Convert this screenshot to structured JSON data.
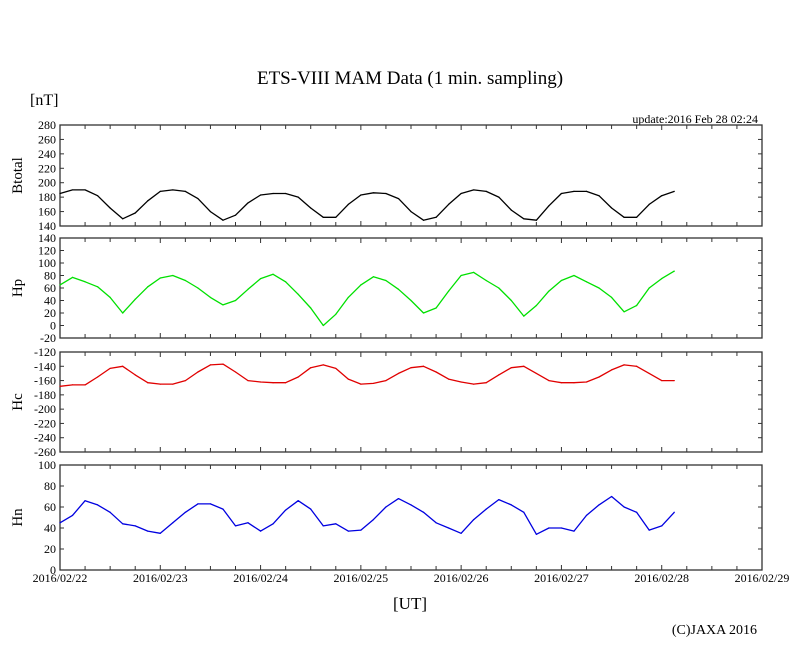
{
  "chart_data": {
    "type": "line",
    "title": "ETS-VIII MAM Data (1 min. sampling)",
    "unit_label": "[nT]",
    "update_text": "update:2016 Feb 28 02:24",
    "xlabel": "[UT]",
    "copyright": "(C)JAXA 2016",
    "x_tick_labels": [
      "2016/02/22",
      "2016/02/23",
      "2016/02/24",
      "2016/02/25",
      "2016/02/26",
      "2016/02/27",
      "2016/02/28",
      "2016/02/29"
    ],
    "x_range_days": [
      0,
      7
    ],
    "sample_interval_hours": 3,
    "grid": false,
    "panels": [
      {
        "name": "Btotal",
        "color": "#000000",
        "ylim": [
          140,
          280
        ],
        "ystep": 20,
        "values": [
          185,
          190,
          190,
          182,
          165,
          150,
          158,
          175,
          188,
          190,
          188,
          178,
          160,
          148,
          155,
          172,
          183,
          185,
          185,
          180,
          165,
          152,
          152,
          170,
          183,
          186,
          185,
          178,
          160,
          148,
          152,
          170,
          185,
          190,
          188,
          180,
          162,
          150,
          148,
          168,
          185,
          188,
          188,
          182,
          165,
          152,
          152,
          170,
          182,
          188
        ]
      },
      {
        "name": "Hp",
        "color": "#00e000",
        "ylim": [
          -20,
          140
        ],
        "ystep": 20,
        "values": [
          65,
          77,
          70,
          62,
          45,
          20,
          42,
          62,
          76,
          80,
          72,
          60,
          45,
          33,
          40,
          58,
          75,
          82,
          70,
          50,
          28,
          0,
          18,
          45,
          65,
          78,
          72,
          58,
          40,
          20,
          28,
          55,
          80,
          85,
          72,
          60,
          40,
          15,
          32,
          55,
          72,
          80,
          70,
          60,
          45,
          22,
          32,
          60,
          75,
          87
        ]
      },
      {
        "name": "Hc",
        "color": "#e00000",
        "ylim": [
          -260,
          -120
        ],
        "ystep": 20,
        "values": [
          -168,
          -166,
          -166,
          -155,
          -143,
          -140,
          -152,
          -163,
          -165,
          -165,
          -160,
          -148,
          -138,
          -137,
          -148,
          -160,
          -162,
          -163,
          -163,
          -155,
          -142,
          -138,
          -143,
          -158,
          -165,
          -164,
          -160,
          -150,
          -142,
          -140,
          -148,
          -158,
          -162,
          -165,
          -163,
          -152,
          -142,
          -140,
          -150,
          -160,
          -163,
          -163,
          -162,
          -155,
          -145,
          -138,
          -140,
          -150,
          -160,
          -160
        ]
      },
      {
        "name": "Hn",
        "color": "#0000e0",
        "ylim": [
          0,
          100
        ],
        "ystep": 20,
        "values": [
          45,
          52,
          66,
          62,
          55,
          44,
          42,
          37,
          35,
          45,
          55,
          63,
          63,
          58,
          42,
          45,
          37,
          44,
          57,
          66,
          58,
          42,
          44,
          37,
          38,
          48,
          60,
          68,
          62,
          55,
          45,
          40,
          35,
          48,
          58,
          67,
          62,
          55,
          34,
          40,
          40,
          37,
          52,
          62,
          70,
          60,
          55,
          38,
          42,
          55
        ]
      }
    ]
  }
}
